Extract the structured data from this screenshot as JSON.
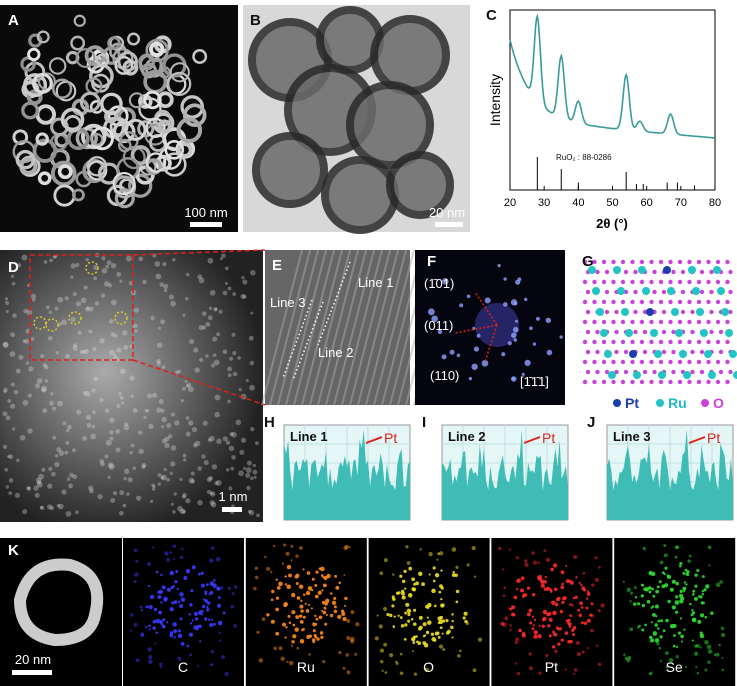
{
  "panels": {
    "A": {
      "label": "A",
      "scale_bar": "100 nm"
    },
    "B": {
      "label": "B",
      "scale_bar": "20 nm"
    },
    "C": {
      "label": "C",
      "y_label": "Intensity",
      "x_label": "2θ (°)",
      "x_ticks": [
        20,
        30,
        40,
        50,
        60,
        70,
        80
      ],
      "reference": "RuO₂ : 88-0286"
    },
    "D": {
      "label": "D",
      "scale_bar": "1 nm"
    },
    "E": {
      "label": "E",
      "lines": [
        "Line 1",
        "Line 3",
        "Line 2"
      ]
    },
    "F": {
      "label": "F",
      "spots": [
        "(1̄01)",
        "(011)",
        "(110)",
        "[1̄1̄1]"
      ]
    },
    "G": {
      "label": "G",
      "legend": [
        "Pt",
        "Ru",
        "O"
      ]
    },
    "H": {
      "label": "H",
      "line": "Line 1",
      "marker": "Pt"
    },
    "I": {
      "label": "I",
      "line": "Line 2",
      "marker": "Pt"
    },
    "J": {
      "label": "J",
      "line": "Line 3",
      "marker": "Pt"
    },
    "K": {
      "label": "K",
      "scale_bar": "20 nm",
      "elements": [
        "C",
        "Ru",
        "O",
        "Pt",
        "Se"
      ]
    }
  }
}
